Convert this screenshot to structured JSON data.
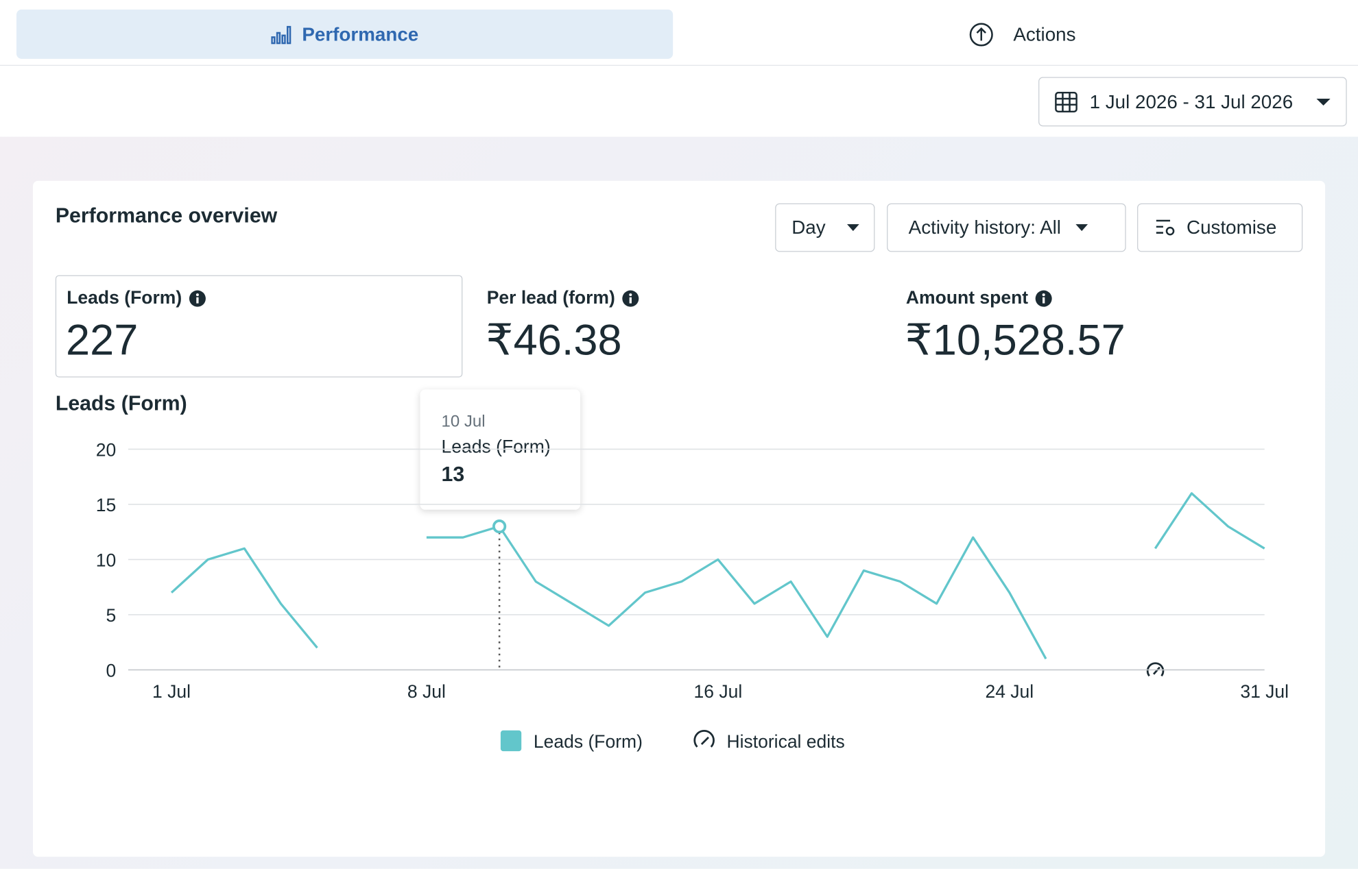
{
  "tabs": {
    "active": "Performance",
    "other": "Actions"
  },
  "date_range": "1 Jul 2026 - 31 Jul 2026",
  "card": {
    "title": "Performance overview",
    "controls": {
      "granularity": "Day",
      "activity": "Activity history: All",
      "customise": "Customise"
    }
  },
  "metrics": [
    {
      "label": "Leads (Form)",
      "value": 227
    },
    {
      "label": "Per lead (form)",
      "value": "₹46.38"
    },
    {
      "label": "Amount spent",
      "value": "₹10,528.57"
    }
  ],
  "chart_data": {
    "type": "line",
    "title": "Leads (Form)",
    "categories": [
      "1 Jul",
      null,
      null,
      null,
      null,
      null,
      null,
      "8 Jul",
      null,
      null,
      null,
      null,
      null,
      null,
      null,
      "16 Jul",
      null,
      null,
      null,
      null,
      null,
      null,
      null,
      "24 Jul",
      null,
      null,
      null,
      null,
      null,
      null,
      "31 Jul"
    ],
    "series": [
      {
        "name": "Leads (Form)",
        "color": "#62c6cb",
        "values": [
          7,
          10,
          11,
          6,
          2,
          null,
          null,
          12,
          12,
          13,
          8,
          6,
          4,
          7,
          8,
          10,
          6,
          8,
          3,
          9,
          8,
          6,
          12,
          7,
          1,
          null,
          null,
          11,
          16,
          13,
          11
        ]
      }
    ],
    "ylim": [
      0,
      20
    ],
    "yticks": [
      0,
      5,
      10,
      15,
      20
    ],
    "grid": true,
    "legend_extra": "Historical edits",
    "tooltip": {
      "date": "10 Jul",
      "name": "Leads (Form)",
      "value": 13
    }
  }
}
